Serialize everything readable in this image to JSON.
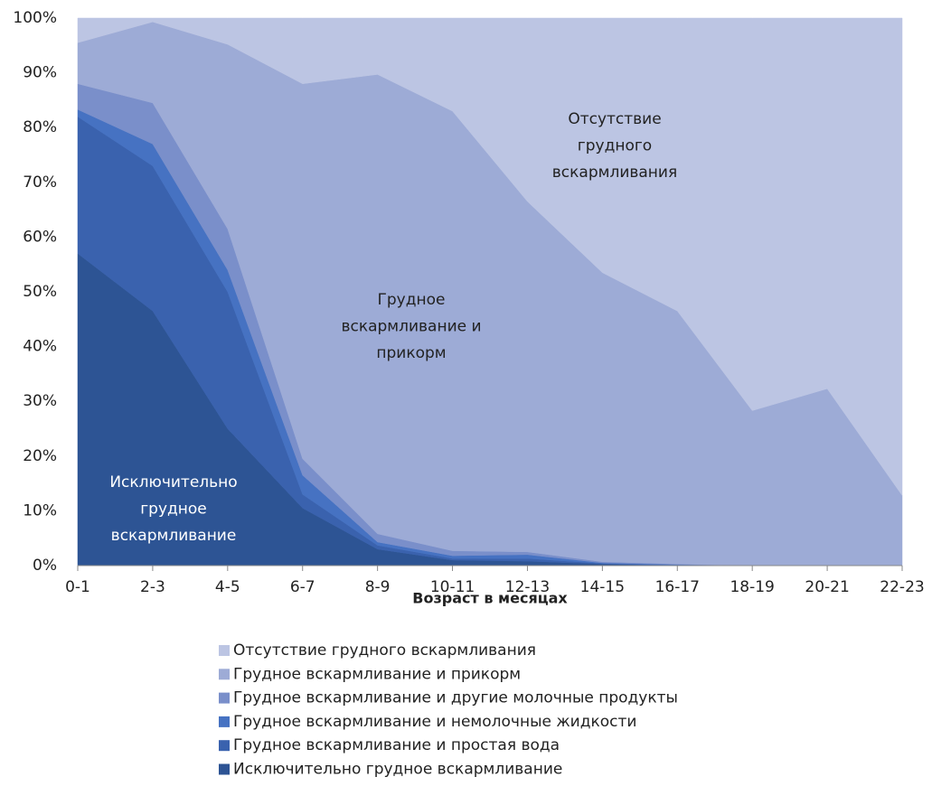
{
  "chart_data": {
    "type": "stacked_area",
    "xlabel": "Возраст в месяцах",
    "categories": [
      "0-1",
      "2-3",
      "4-5",
      "6-7",
      "8-9",
      "10-11",
      "12-13",
      "14-15",
      "16-17",
      "18-19",
      "20-21",
      "22-23"
    ],
    "series": [
      {
        "name": "Исключительно грудное вскармливание",
        "color": "#2d5494",
        "values": [
          57,
          46.5,
          25,
          10.5,
          3,
          1,
          0.8,
          0.3,
          0,
          0,
          0,
          0
        ]
      },
      {
        "name": "Грудное вскармливание и простая вода",
        "color": "#3a62ae",
        "values": [
          25,
          26.5,
          25,
          2.5,
          0.7,
          0.3,
          0.5,
          0.1,
          0.1,
          0,
          0,
          0
        ]
      },
      {
        "name": "Грудное вскармливание и немолочные жидкости",
        "color": "#4672c2",
        "values": [
          1.3,
          4,
          4,
          3.5,
          0.6,
          0.5,
          0.7,
          0.1,
          0.1,
          0,
          0,
          0
        ]
      },
      {
        "name": "Грудное вскармливание и другие молочные продукты",
        "color": "#7a8fca",
        "values": [
          4.7,
          7.5,
          7.5,
          3,
          1.5,
          0.9,
          0.5,
          0.2,
          0.1,
          0,
          0,
          0
        ]
      },
      {
        "name": "Грудное вскармливание и прикорм",
        "color": "#9dabd6",
        "values": [
          7.5,
          14.8,
          33.7,
          68.5,
          83.9,
          80.3,
          64,
          52.8,
          46.2,
          28.3,
          32.3,
          12.8
        ]
      },
      {
        "name": "Отсутствие грудного вскармливания",
        "color": "#bcc5e3",
        "values": [
          4.5,
          0.7,
          4.8,
          12,
          10.3,
          17,
          33.5,
          46.5,
          53.5,
          71.7,
          67.7,
          87.2
        ]
      }
    ],
    "annotations": [
      {
        "lines": [
          "Отсутствие",
          "грудного",
          "вскармливания"
        ],
        "color": "#222222"
      },
      {
        "lines": [
          "Грудное",
          "вскармливание и",
          "прикорм"
        ],
        "color": "#222222"
      },
      {
        "lines": [
          "Исключительно",
          "грудное",
          "вскармливание"
        ],
        "color": "#ffffff"
      }
    ],
    "ylim": [
      0,
      100
    ],
    "yticks": [
      {
        "value": 0,
        "label": "0%"
      },
      {
        "value": 10,
        "label": "10%"
      },
      {
        "value": 20,
        "label": "20%"
      },
      {
        "value": 30,
        "label": "30%"
      },
      {
        "value": 40,
        "label": "40%"
      },
      {
        "value": 50,
        "label": "50%"
      },
      {
        "value": 60,
        "label": "60%"
      },
      {
        "value": 70,
        "label": "70%"
      },
      {
        "value": 80,
        "label": "80%"
      },
      {
        "value": 90,
        "label": "90%"
      },
      {
        "value": 100,
        "label": "100%"
      }
    ],
    "legend": "bottom"
  }
}
